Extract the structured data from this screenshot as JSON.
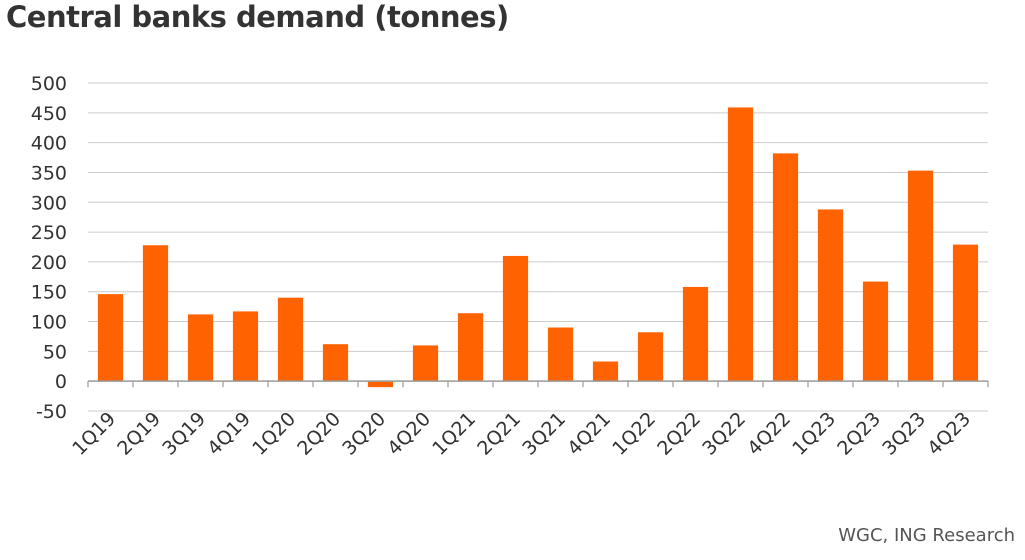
{
  "chart_title": "Central banks demand (tonnes)",
  "source": "WGC, ING Research",
  "colors": {
    "bar": "#FF6200",
    "grid": "#CCCCCC",
    "axis": "#999999",
    "text": "#333333"
  },
  "chart_data": {
    "type": "bar",
    "title": "Central banks demand (tonnes)",
    "xlabel": "",
    "ylabel": "",
    "ylim": [
      -50,
      500
    ],
    "yticks": [
      -50,
      0,
      50,
      100,
      150,
      200,
      250,
      300,
      350,
      400,
      450,
      500
    ],
    "grid": true,
    "legend": "none",
    "categories": [
      "1Q19",
      "2Q19",
      "3Q19",
      "4Q19",
      "1Q20",
      "2Q20",
      "3Q20",
      "4Q20",
      "1Q21",
      "2Q21",
      "3Q21",
      "4Q21",
      "1Q22",
      "2Q22",
      "3Q22",
      "4Q22",
      "1Q23",
      "2Q23",
      "3Q23",
      "4Q23"
    ],
    "values": [
      146,
      228,
      112,
      117,
      140,
      62,
      -10,
      60,
      114,
      210,
      90,
      33,
      82,
      158,
      459,
      382,
      288,
      167,
      353,
      229
    ]
  }
}
